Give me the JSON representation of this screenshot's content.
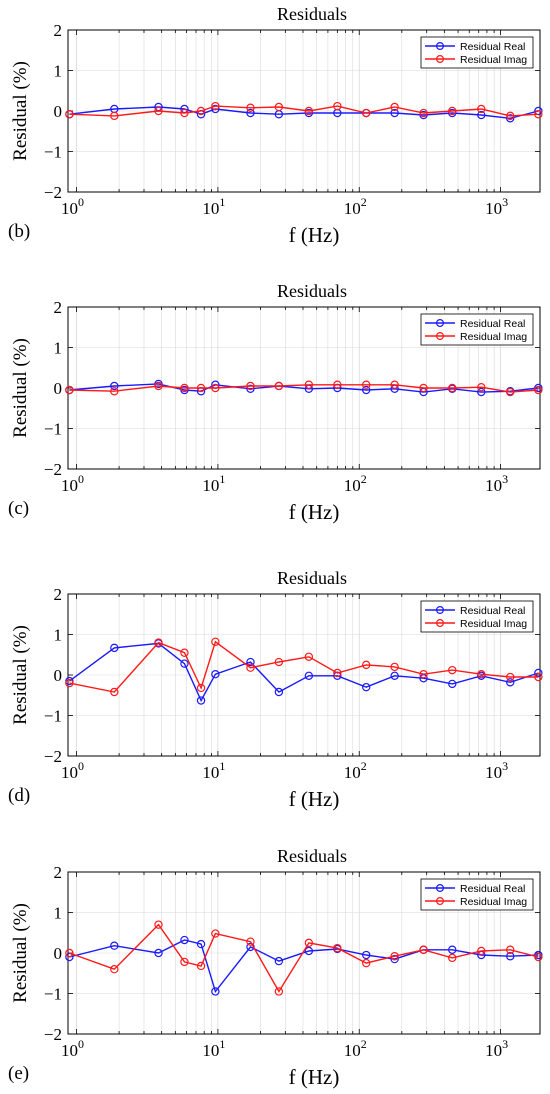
{
  "legend": {
    "real_label": "Residual Real",
    "imag_label": "Residual Imag"
  },
  "colors": {
    "real": "#1a1aff",
    "imag": "#ff1a1a",
    "axis": "#000000",
    "grid": "#d9d9d9"
  },
  "chart_data": [
    {
      "panel_label": "(b)",
      "type": "line",
      "title": "Residuals",
      "xlabel": "f (Hz)",
      "ylabel": "Residual  (%)",
      "xscale": "log",
      "xlim": [
        0.87,
        1900
      ],
      "ylim": [
        -2,
        2
      ],
      "yticks": [
        2,
        1,
        0,
        -1,
        -2
      ],
      "xtick_labels": [
        {
          "base": "10",
          "exp": "0",
          "value": 1
        },
        {
          "base": "10",
          "exp": "1",
          "value": 10
        },
        {
          "base": "10",
          "exp": "2",
          "value": 100
        },
        {
          "base": "10",
          "exp": "3",
          "value": 1000
        }
      ],
      "grid": true,
      "legend_position": "top-right",
      "x": [
        0.89,
        1.85,
        3.8,
        5.8,
        7.6,
        9.6,
        17,
        27,
        44,
        70,
        112,
        178,
        285,
        455,
        730,
        1170,
        1850
      ],
      "series": [
        {
          "name": "Residual Real",
          "values": [
            -0.08,
            0.05,
            0.1,
            0.05,
            -0.08,
            0.05,
            -0.05,
            -0.08,
            -0.05,
            -0.05,
            -0.05,
            -0.05,
            -0.1,
            -0.05,
            -0.1,
            -0.18,
            0.0
          ]
        },
        {
          "name": "Residual Imag",
          "values": [
            -0.08,
            -0.12,
            0.0,
            -0.05,
            0.0,
            0.12,
            0.08,
            0.1,
            0.0,
            0.12,
            -0.05,
            0.1,
            -0.05,
            0.0,
            0.05,
            -0.12,
            -0.08
          ]
        }
      ]
    },
    {
      "panel_label": "(c)",
      "type": "line",
      "title": "Residuals",
      "xlabel": "f (Hz)",
      "ylabel": "Residual  (%)",
      "xscale": "log",
      "xlim": [
        0.87,
        1900
      ],
      "ylim": [
        -2,
        2
      ],
      "yticks": [
        2,
        1,
        0,
        -1,
        -2
      ],
      "xtick_labels": [
        {
          "base": "10",
          "exp": "0",
          "value": 1
        },
        {
          "base": "10",
          "exp": "1",
          "value": 10
        },
        {
          "base": "10",
          "exp": "2",
          "value": 100
        },
        {
          "base": "10",
          "exp": "3",
          "value": 1000
        }
      ],
      "grid": true,
      "legend_position": "top-right",
      "x": [
        0.89,
        1.85,
        3.8,
        5.8,
        7.6,
        9.6,
        17,
        27,
        44,
        70,
        112,
        178,
        285,
        455,
        730,
        1170,
        1850
      ],
      "series": [
        {
          "name": "Residual Real",
          "values": [
            -0.05,
            0.05,
            0.1,
            -0.05,
            -0.08,
            0.08,
            -0.02,
            0.05,
            -0.02,
            0.0,
            -0.05,
            -0.02,
            -0.1,
            -0.02,
            -0.1,
            -0.08,
            0.0
          ]
        },
        {
          "name": "Residual Imag",
          "values": [
            -0.05,
            -0.08,
            0.05,
            0.0,
            0.0,
            0.0,
            0.05,
            0.05,
            0.08,
            0.08,
            0.08,
            0.08,
            0.0,
            0.0,
            0.02,
            -0.1,
            -0.05
          ]
        }
      ]
    },
    {
      "panel_label": "(d)",
      "type": "line",
      "title": "Residuals",
      "xlabel": "f (Hz)",
      "ylabel": "Residual  (%)",
      "xscale": "log",
      "xlim": [
        0.87,
        1900
      ],
      "ylim": [
        -2,
        2
      ],
      "yticks": [
        2,
        1,
        0,
        -1,
        -2
      ],
      "xtick_labels": [
        {
          "base": "10",
          "exp": "0",
          "value": 1
        },
        {
          "base": "10",
          "exp": "1",
          "value": 10
        },
        {
          "base": "10",
          "exp": "2",
          "value": 100
        },
        {
          "base": "10",
          "exp": "3",
          "value": 1000
        }
      ],
      "grid": true,
      "legend_position": "top-right",
      "x": [
        0.89,
        1.85,
        3.8,
        5.8,
        7.6,
        9.6,
        17,
        27,
        44,
        70,
        112,
        178,
        285,
        455,
        730,
        1170,
        1850
      ],
      "series": [
        {
          "name": "Residual Real",
          "values": [
            -0.15,
            0.67,
            0.78,
            0.28,
            -0.63,
            0.02,
            0.32,
            -0.42,
            -0.02,
            -0.02,
            -0.3,
            -0.02,
            -0.08,
            -0.22,
            -0.02,
            -0.18,
            0.05
          ]
        },
        {
          "name": "Residual Imag",
          "values": [
            -0.2,
            -0.42,
            0.8,
            0.55,
            -0.32,
            0.82,
            0.18,
            0.32,
            0.45,
            0.05,
            0.25,
            0.2,
            0.02,
            0.12,
            0.02,
            -0.05,
            -0.05
          ]
        }
      ]
    },
    {
      "panel_label": "(e)",
      "type": "line",
      "title": "Residuals",
      "xlabel": "f (Hz)",
      "ylabel": "Residual  (%)",
      "xscale": "log",
      "xlim": [
        0.87,
        1900
      ],
      "ylim": [
        -2,
        2
      ],
      "yticks": [
        2,
        1,
        0,
        -1,
        -2
      ],
      "xtick_labels": [
        {
          "base": "10",
          "exp": "0",
          "value": 1
        },
        {
          "base": "10",
          "exp": "1",
          "value": 10
        },
        {
          "base": "10",
          "exp": "2",
          "value": 100
        },
        {
          "base": "10",
          "exp": "3",
          "value": 1000
        }
      ],
      "grid": true,
      "legend_position": "top-right",
      "x": [
        0.89,
        1.85,
        3.8,
        5.8,
        7.6,
        9.6,
        17,
        27,
        44,
        70,
        112,
        178,
        285,
        455,
        730,
        1170,
        1850
      ],
      "series": [
        {
          "name": "Residual Real",
          "values": [
            -0.1,
            0.18,
            0.0,
            0.32,
            0.22,
            -0.95,
            0.15,
            -0.2,
            0.05,
            0.1,
            -0.05,
            -0.15,
            0.08,
            0.08,
            -0.05,
            -0.08,
            -0.05
          ]
        },
        {
          "name": "Residual Imag",
          "values": [
            0.0,
            -0.4,
            0.7,
            -0.22,
            -0.32,
            0.48,
            0.28,
            -0.95,
            0.25,
            0.12,
            -0.25,
            -0.08,
            0.08,
            -0.12,
            0.05,
            0.08,
            -0.1
          ]
        }
      ]
    }
  ]
}
